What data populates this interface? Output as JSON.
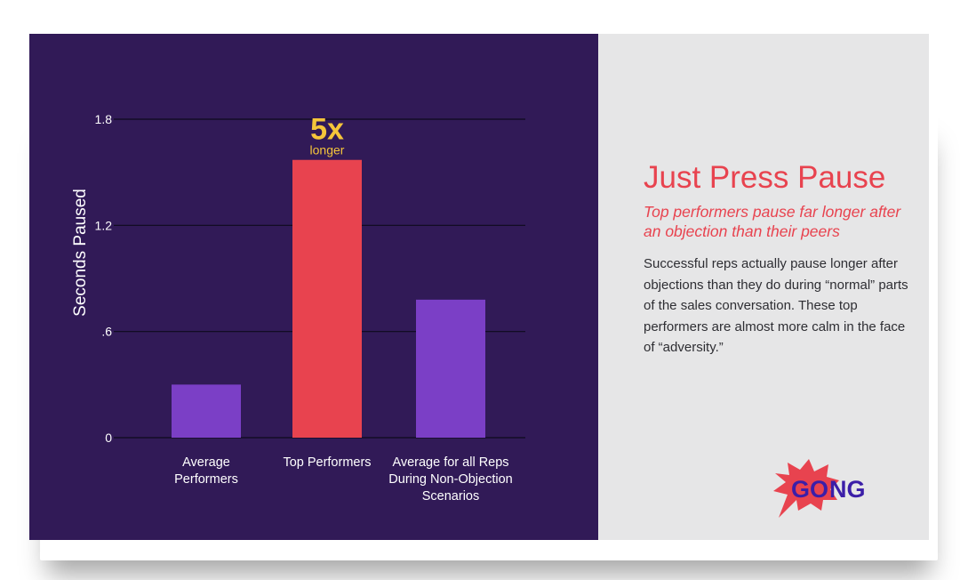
{
  "chart_data": {
    "type": "bar",
    "categories": [
      "Average\nPerformers",
      "Top Performers",
      "Average for all Reps\nDuring Non-Objection\nScenarios"
    ],
    "values": [
      0.3,
      1.57,
      0.78
    ],
    "bar_colors": [
      "#7b3fc6",
      "#e8434f",
      "#7b3fc6"
    ],
    "ylabel": "Seconds Paused",
    "yticks": [
      {
        "value": 0,
        "label": "0"
      },
      {
        "value": 0.6,
        "label": ".6"
      },
      {
        "value": 1.2,
        "label": "1.2"
      },
      {
        "value": 1.8,
        "label": "1.8"
      }
    ],
    "ylim": [
      0,
      1.8
    ],
    "grid": true,
    "annotation": {
      "big": "5x",
      "small": "longer",
      "category_index": 1,
      "color": "#f5c53a"
    }
  },
  "panel": {
    "title": "Just Press Pause",
    "subtitle": "Top performers pause far longer after an objection than their peers",
    "body": "Successful reps actually pause longer after objections than they do during “normal” parts of the sales conversation. These top performers are almost more calm in the face of “adversity.”"
  },
  "logo": {
    "text_left": "GO",
    "text_right": "NG",
    "burst_color": "#e8434f",
    "text_color": "#3b1ea8"
  },
  "colors": {
    "chart_bg": "#311a57",
    "panel_bg": "#e6e6e7",
    "accent": "#e8434f",
    "bar": "#7b3fc6",
    "highlight": "#f5c53a"
  }
}
